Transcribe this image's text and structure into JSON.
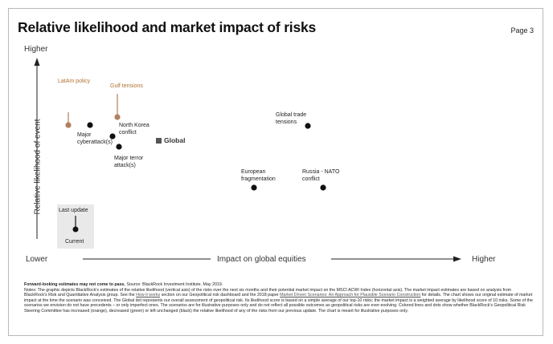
{
  "header": {
    "title": "Relative likelihood and market impact of risks",
    "page": "Page 3"
  },
  "axes": {
    "y_high": "Higher",
    "y_label": "Relative likelihood of event",
    "x_low": "Lower",
    "x_label": "Impact on global equities",
    "x_high": "Higher"
  },
  "legend_box": {
    "top": "Last update",
    "bottom": "Current"
  },
  "global_marker": {
    "label": "Global",
    "icon": "square-icon"
  },
  "colors": {
    "current": "#111111",
    "previous": "#b08060",
    "prev_label": "#b07030",
    "axis": "#222222"
  },
  "chart_data": {
    "type": "scatter",
    "title": "Relative likelihood and market impact of risks",
    "xlabel": "Impact on global equities",
    "ylabel": "Relative likelihood of event",
    "points": [
      {
        "name": "LatAm policy",
        "previous": true,
        "label_lines": [
          "LatAm policy"
        ]
      },
      {
        "name": "Gulf tensions",
        "previous": true,
        "label_lines": [
          "Gulf tensions"
        ]
      },
      {
        "name": "Major cyberattack(s)",
        "previous": false,
        "label_lines": [
          "Major",
          "cyberattack(s)"
        ]
      },
      {
        "name": "North Korea conflict",
        "previous": false,
        "label_lines": [
          "North Korea",
          "conflict"
        ]
      },
      {
        "name": "Major terror attack(s)",
        "previous": false,
        "label_lines": [
          "Major terror",
          "attack(s)"
        ]
      },
      {
        "name": "Global trade tensions",
        "previous": false,
        "label_lines": [
          "Global trade",
          "tensions"
        ]
      },
      {
        "name": "European fragmentation",
        "previous": false,
        "label_lines": [
          "European",
          "fragmentation"
        ]
      },
      {
        "name": "Russia - NATO conflict",
        "previous": false,
        "label_lines": [
          "Russia - NATO",
          "conflict"
        ]
      }
    ]
  },
  "footer": {
    "lead": "Forward-looking estimates may not come to pass.",
    "source": " Source: BlackRock Investment Institute. May 2019.",
    "p1": "Notes: The graphic depicts BlackRock's estimates of the relative likelihood (vertical axis) of the risks over the next six months and their potential market impact on the MSCI ACWI Index (horizontal axis). The market impact estimates are based on analysis from BlackRock's Risk and Quantitative Analysis group. See the ",
    "link1": "How it works",
    "p2": " section on our Geopolitical risk dashboard and the 2018 paper ",
    "link2": "Market Driven Scenarios: An Approach for Plausible Scenario Construction",
    "p3": " for details. The chart shows our original estimate of market impact at the time the scenario was conceived. The Global dot represents our overall assessment of geopolitical risk. Its likelihood score is based on a simple average of our top-10 risks; the market impact is a weighted average by likelihood score of 10 risks. Some of the scenarios we envision do not have precedents – or only imperfect ones. The scenarios are for illustrative purposes only and do not reflect all possible outcomes as geopolitical risks are ever-evolving. Colored lines and dots show whether BlackRock's Geopolitical Risk Steering Committee has increased (orange), decreased (green) or left unchanged (black) the relative likelihood of any of the risks from our previous update. The chart is meant for illustrative purposes only."
  }
}
